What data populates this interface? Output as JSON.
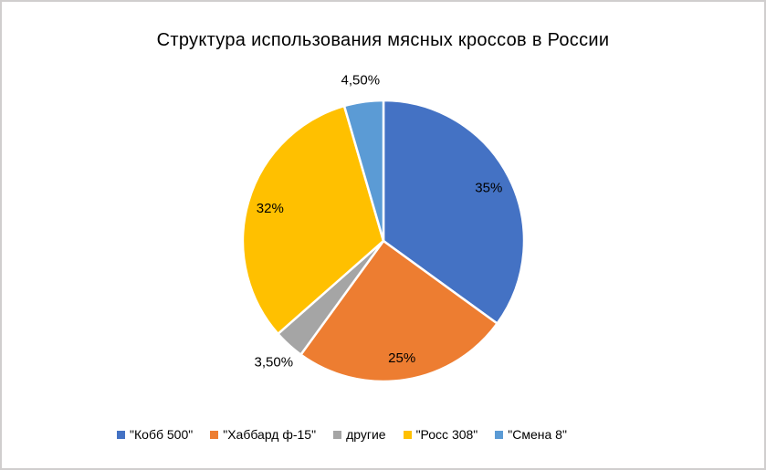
{
  "frame": {
    "background": "#FFFFFF",
    "border_color": "#D0CECE"
  },
  "chart_data": {
    "type": "pie",
    "title": "Структура использования мясных кроссов в России",
    "start_angle_deg": 0,
    "direction": "clockwise",
    "legend_position": "bottom",
    "slice_border_color": "#FFFFFF",
    "label_color": "#000000",
    "slices": [
      {
        "name": "\"Кобб 500\"",
        "value": 35,
        "label": "35%",
        "color": "#4472C4",
        "label_position": "inside"
      },
      {
        "name": "\"Хаббард ф-15\"",
        "value": 25,
        "label": "25%",
        "color": "#ED7D31",
        "label_position": "inside"
      },
      {
        "name": "другие",
        "value": 3.5,
        "label": "3,50%",
        "color": "#A5A5A5",
        "label_position": "outside"
      },
      {
        "name": "\"Росс 308\"",
        "value": 32,
        "label": "32%",
        "color": "#FFC000",
        "label_position": "inside"
      },
      {
        "name": "\"Смена 8\"",
        "value": 4.5,
        "label": "4,50%",
        "color": "#5B9BD5",
        "label_position": "outside"
      }
    ]
  }
}
